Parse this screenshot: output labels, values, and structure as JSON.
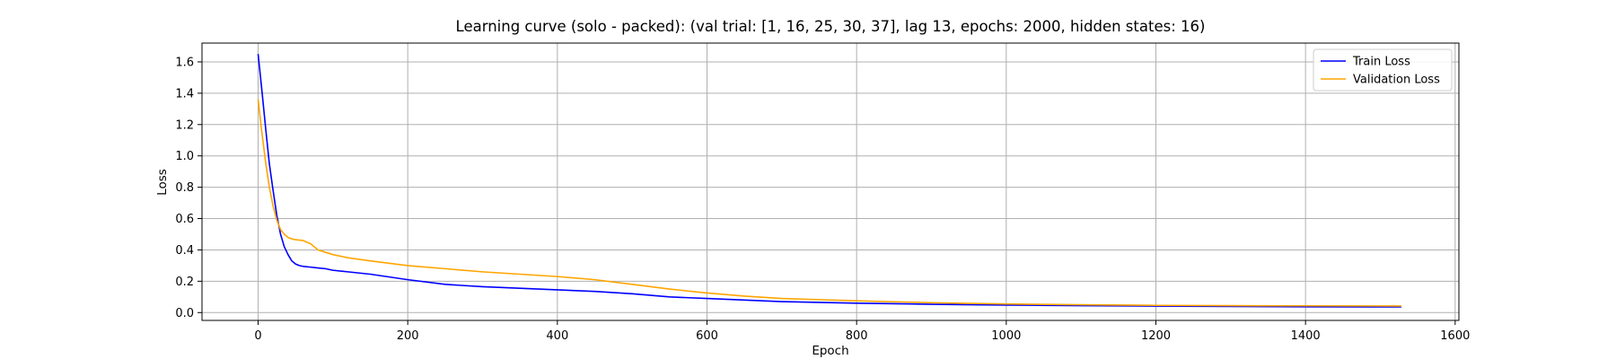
{
  "chart_data": {
    "type": "line",
    "title": "Learning curve (solo - packed): (val trial: [1, 16, 25, 30, 37], lag 13, epochs: 2000, hidden states: 16)",
    "xlabel": "Epoch",
    "ylabel": "Loss",
    "xlim": [
      -75,
      1605
    ],
    "ylim": [
      -0.05,
      1.72
    ],
    "xticks": [
      0,
      200,
      400,
      600,
      800,
      1000,
      1200,
      1400,
      1600
    ],
    "yticks": [
      0.0,
      0.2,
      0.4,
      0.6,
      0.8,
      1.0,
      1.2,
      1.4,
      1.6
    ],
    "grid": true,
    "legend_position": "top-right",
    "series": [
      {
        "name": "Train Loss",
        "color": "#0000ff",
        "x": [
          0,
          5,
          10,
          15,
          20,
          25,
          30,
          35,
          40,
          45,
          50,
          55,
          60,
          70,
          80,
          90,
          100,
          120,
          150,
          200,
          250,
          300,
          350,
          400,
          450,
          500,
          550,
          600,
          650,
          700,
          800,
          900,
          1000,
          1100,
          1200,
          1300,
          1400,
          1528
        ],
        "y": [
          1.65,
          1.42,
          1.18,
          0.95,
          0.78,
          0.62,
          0.5,
          0.42,
          0.37,
          0.33,
          0.31,
          0.3,
          0.295,
          0.29,
          0.285,
          0.28,
          0.27,
          0.26,
          0.245,
          0.21,
          0.18,
          0.165,
          0.155,
          0.145,
          0.135,
          0.12,
          0.1,
          0.09,
          0.08,
          0.07,
          0.06,
          0.053,
          0.048,
          0.044,
          0.041,
          0.039,
          0.037,
          0.036
        ]
      },
      {
        "name": "Validation Loss",
        "color": "#ffa500",
        "x": [
          0,
          5,
          10,
          15,
          20,
          25,
          30,
          35,
          40,
          45,
          50,
          60,
          70,
          80,
          100,
          120,
          150,
          200,
          250,
          300,
          350,
          400,
          450,
          500,
          550,
          600,
          650,
          700,
          800,
          900,
          1000,
          1100,
          1200,
          1300,
          1400,
          1528
        ],
        "y": [
          1.36,
          1.15,
          0.96,
          0.8,
          0.68,
          0.59,
          0.53,
          0.5,
          0.48,
          0.47,
          0.465,
          0.46,
          0.44,
          0.4,
          0.37,
          0.35,
          0.33,
          0.3,
          0.28,
          0.26,
          0.245,
          0.23,
          0.21,
          0.18,
          0.15,
          0.125,
          0.105,
          0.09,
          0.075,
          0.063,
          0.055,
          0.05,
          0.046,
          0.044,
          0.043,
          0.042
        ]
      }
    ]
  }
}
